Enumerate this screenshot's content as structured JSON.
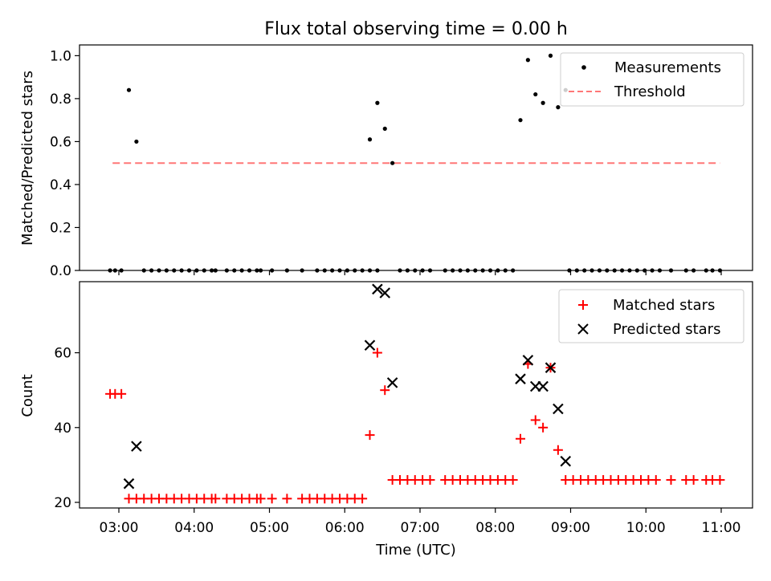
{
  "chart_data": [
    {
      "type": "scatter",
      "title": "Flux total observing time = 0.00 h",
      "xlabel": "",
      "ylabel": "Matched/Predicted stars",
      "ylim": [
        0,
        1.05
      ],
      "yticks": [
        "0.0",
        "0.2",
        "0.4",
        "0.6",
        "0.8",
        "1.0"
      ],
      "legend_position": "upper right",
      "series": [
        {
          "name": "Measurements",
          "marker": "dot",
          "color": "#000000",
          "points": [
            [
              "02:53",
              0
            ],
            [
              "02:57",
              0
            ],
            [
              "03:02",
              0
            ],
            [
              "03:08",
              0.84
            ],
            [
              "03:14",
              0.6
            ],
            [
              "03:20",
              0
            ],
            [
              "03:26",
              0
            ],
            [
              "03:32",
              0
            ],
            [
              "03:38",
              0
            ],
            [
              "03:44",
              0
            ],
            [
              "03:50",
              0
            ],
            [
              "03:56",
              0
            ],
            [
              "04:02",
              0
            ],
            [
              "04:08",
              0
            ],
            [
              "04:14",
              0
            ],
            [
              "04:17",
              0
            ],
            [
              "04:26",
              0
            ],
            [
              "04:32",
              0
            ],
            [
              "04:38",
              0
            ],
            [
              "04:44",
              0
            ],
            [
              "04:50",
              0
            ],
            [
              "04:53",
              0
            ],
            [
              "05:02",
              0
            ],
            [
              "05:14",
              0
            ],
            [
              "05:26",
              0
            ],
            [
              "05:38",
              0
            ],
            [
              "05:44",
              0
            ],
            [
              "05:50",
              0
            ],
            [
              "05:56",
              0
            ],
            [
              "06:02",
              0
            ],
            [
              "06:08",
              0
            ],
            [
              "06:14",
              0
            ],
            [
              "06:20",
              0
            ],
            [
              "06:26",
              0
            ],
            [
              "06:20",
              0.61
            ],
            [
              "06:26",
              0.78
            ],
            [
              "06:32",
              0.66
            ],
            [
              "06:38",
              0.5
            ],
            [
              "06:44",
              0
            ],
            [
              "06:50",
              0
            ],
            [
              "06:56",
              0
            ],
            [
              "07:02",
              0
            ],
            [
              "07:08",
              0
            ],
            [
              "07:20",
              0
            ],
            [
              "07:26",
              0
            ],
            [
              "07:32",
              0
            ],
            [
              "07:38",
              0
            ],
            [
              "07:44",
              0
            ],
            [
              "07:50",
              0
            ],
            [
              "07:56",
              0
            ],
            [
              "08:02",
              0
            ],
            [
              "08:08",
              0
            ],
            [
              "08:14",
              0
            ],
            [
              "08:20",
              0.7
            ],
            [
              "08:26",
              0.98
            ],
            [
              "08:32",
              0.82
            ],
            [
              "08:38",
              0.78
            ],
            [
              "08:44",
              1.0
            ],
            [
              "08:50",
              0.76
            ],
            [
              "08:56",
              0.84
            ],
            [
              "08:59",
              0
            ],
            [
              "09:05",
              0
            ],
            [
              "09:11",
              0
            ],
            [
              "09:17",
              0
            ],
            [
              "09:23",
              0
            ],
            [
              "09:29",
              0
            ],
            [
              "09:35",
              0
            ],
            [
              "09:41",
              0
            ],
            [
              "09:47",
              0
            ],
            [
              "09:53",
              0
            ],
            [
              "09:59",
              0
            ],
            [
              "10:05",
              0
            ],
            [
              "10:11",
              0
            ],
            [
              "10:20",
              0
            ],
            [
              "10:32",
              0
            ],
            [
              "10:38",
              0
            ],
            [
              "10:48",
              0
            ],
            [
              "10:53",
              0
            ],
            [
              "10:59",
              0
            ]
          ]
        },
        {
          "name": "Threshold",
          "style": "dashed",
          "color": "#ff7777",
          "x": [
            "02:55",
            "10:59"
          ],
          "y": [
            0.5,
            0.5
          ]
        }
      ]
    },
    {
      "type": "scatter",
      "title": "",
      "xlabel": "Time (UTC)",
      "ylabel": "Count",
      "ylim": [
        18.5,
        79
      ],
      "yticks": [
        20,
        40,
        60
      ],
      "xticks": [
        "03:00",
        "04:00",
        "05:00",
        "06:00",
        "07:00",
        "08:00",
        "09:00",
        "10:00",
        "11:00"
      ],
      "legend_position": "upper right",
      "series": [
        {
          "name": "Matched stars",
          "marker": "plus",
          "color": "#ff0000",
          "points": [
            [
              "02:53",
              49
            ],
            [
              "02:57",
              49
            ],
            [
              "03:02",
              49
            ],
            [
              "03:08",
              21
            ],
            [
              "03:14",
              21
            ],
            [
              "03:20",
              21
            ],
            [
              "03:26",
              21
            ],
            [
              "03:32",
              21
            ],
            [
              "03:38",
              21
            ],
            [
              "03:44",
              21
            ],
            [
              "03:50",
              21
            ],
            [
              "03:56",
              21
            ],
            [
              "04:02",
              21
            ],
            [
              "04:08",
              21
            ],
            [
              "04:14",
              21
            ],
            [
              "04:17",
              21
            ],
            [
              "04:26",
              21
            ],
            [
              "04:32",
              21
            ],
            [
              "04:38",
              21
            ],
            [
              "04:44",
              21
            ],
            [
              "04:50",
              21
            ],
            [
              "04:53",
              21
            ],
            [
              "05:02",
              21
            ],
            [
              "05:14",
              21
            ],
            [
              "05:26",
              21
            ],
            [
              "05:32",
              21
            ],
            [
              "05:38",
              21
            ],
            [
              "05:44",
              21
            ],
            [
              "05:50",
              21
            ],
            [
              "05:56",
              21
            ],
            [
              "06:02",
              21
            ],
            [
              "06:08",
              21
            ],
            [
              "06:14",
              21
            ],
            [
              "06:20",
              38
            ],
            [
              "06:26",
              60
            ],
            [
              "06:32",
              50
            ],
            [
              "06:38",
              26
            ],
            [
              "06:44",
              26
            ],
            [
              "06:50",
              26
            ],
            [
              "06:56",
              26
            ],
            [
              "07:02",
              26
            ],
            [
              "07:08",
              26
            ],
            [
              "07:20",
              26
            ],
            [
              "07:26",
              26
            ],
            [
              "07:32",
              26
            ],
            [
              "07:38",
              26
            ],
            [
              "07:44",
              26
            ],
            [
              "07:50",
              26
            ],
            [
              "07:56",
              26
            ],
            [
              "08:02",
              26
            ],
            [
              "08:08",
              26
            ],
            [
              "08:14",
              26
            ],
            [
              "08:20",
              37
            ],
            [
              "08:26",
              57
            ],
            [
              "08:32",
              42
            ],
            [
              "08:38",
              40
            ],
            [
              "08:44",
              56
            ],
            [
              "08:50",
              34
            ],
            [
              "08:56",
              26
            ],
            [
              "09:02",
              26
            ],
            [
              "09:08",
              26
            ],
            [
              "09:14",
              26
            ],
            [
              "09:20",
              26
            ],
            [
              "09:26",
              26
            ],
            [
              "09:32",
              26
            ],
            [
              "09:38",
              26
            ],
            [
              "09:44",
              26
            ],
            [
              "09:50",
              26
            ],
            [
              "09:56",
              26
            ],
            [
              "10:02",
              26
            ],
            [
              "10:08",
              26
            ],
            [
              "10:20",
              26
            ],
            [
              "10:32",
              26
            ],
            [
              "10:38",
              26
            ],
            [
              "10:48",
              26
            ],
            [
              "10:53",
              26
            ],
            [
              "10:59",
              26
            ]
          ]
        },
        {
          "name": "Predicted stars",
          "marker": "x",
          "color": "#000000",
          "points": [
            [
              "03:08",
              25
            ],
            [
              "03:14",
              35
            ],
            [
              "06:20",
              62
            ],
            [
              "06:26",
              77
            ],
            [
              "06:32",
              76
            ],
            [
              "06:38",
              52
            ],
            [
              "08:20",
              53
            ],
            [
              "08:26",
              58
            ],
            [
              "08:32",
              51
            ],
            [
              "08:38",
              51
            ],
            [
              "08:44",
              56
            ],
            [
              "08:50",
              45
            ],
            [
              "08:56",
              31
            ]
          ]
        }
      ]
    }
  ]
}
